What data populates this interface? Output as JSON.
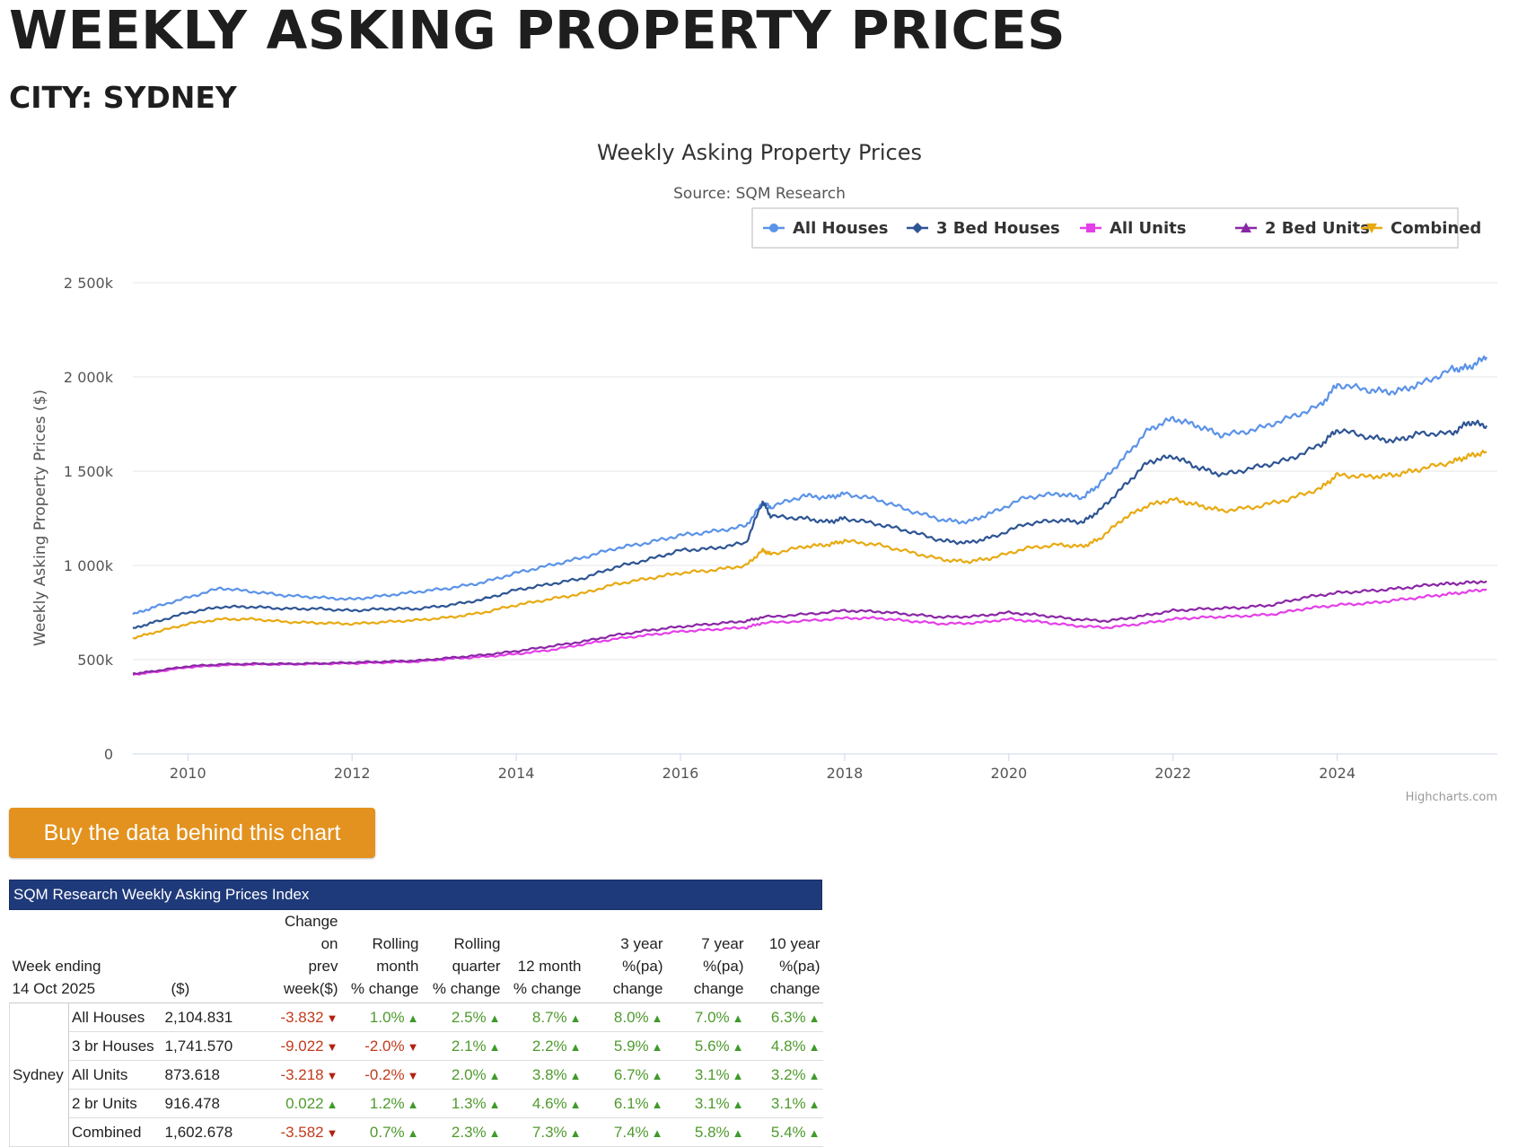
{
  "page": {
    "title": "WEEKLY ASKING PROPERTY PRICES",
    "city_label": "CITY: SYDNEY"
  },
  "chart_data": {
    "type": "line",
    "title": "Weekly Asking Property Prices",
    "subtitle": "Source: SQM Research",
    "ylabel": "Weekly Asking Property Prices ($)",
    "xlabel": "",
    "ylim": [
      0,
      2500000
    ],
    "yticks": [
      0,
      500000,
      1000000,
      1500000,
      2000000,
      2500000
    ],
    "ytick_labels": [
      "0",
      "500k",
      "1 000k",
      "1 500k",
      "2 000k",
      "2 500k"
    ],
    "xlim": [
      2009.33,
      2025.95
    ],
    "xticks": [
      2010,
      2012,
      2014,
      2016,
      2018,
      2020,
      2022,
      2024
    ],
    "xtick_labels": [
      "2010",
      "2012",
      "2014",
      "2016",
      "2018",
      "2020",
      "2022",
      "2024"
    ],
    "grid": "horizontal",
    "legend_position": "top-right",
    "credit": "Highcharts.com",
    "series": [
      {
        "name": "All Houses",
        "color": "#5b93e8",
        "marker": "circle",
        "x": [
          2009.33,
          2009.6,
          2010.0,
          2010.4,
          2010.8,
          2011.2,
          2011.6,
          2012.0,
          2012.4,
          2012.8,
          2013.2,
          2013.6,
          2014.0,
          2014.4,
          2014.8,
          2015.2,
          2015.6,
          2016.0,
          2016.4,
          2016.8,
          2017.0,
          2017.1,
          2017.5,
          2017.8,
          2018.0,
          2018.4,
          2018.8,
          2019.2,
          2019.5,
          2019.8,
          2020.2,
          2020.6,
          2020.9,
          2021.1,
          2021.4,
          2021.7,
          2022.0,
          2022.3,
          2022.6,
          2023.0,
          2023.4,
          2023.8,
          2024.0,
          2024.4,
          2024.7,
          2025.0,
          2025.4,
          2025.6,
          2025.82
        ],
        "y": [
          740000,
          780000,
          830000,
          880000,
          860000,
          840000,
          830000,
          820000,
          840000,
          860000,
          880000,
          910000,
          960000,
          1000000,
          1040000,
          1090000,
          1120000,
          1160000,
          1180000,
          1210000,
          1330000,
          1310000,
          1370000,
          1360000,
          1380000,
          1350000,
          1290000,
          1240000,
          1230000,
          1280000,
          1360000,
          1380000,
          1360000,
          1430000,
          1570000,
          1720000,
          1780000,
          1740000,
          1690000,
          1720000,
          1780000,
          1850000,
          1960000,
          1930000,
          1920000,
          1960000,
          2040000,
          2050000,
          2104831
        ]
      },
      {
        "name": "3 Bed Houses",
        "color": "#2e5594",
        "marker": "diamond",
        "x": [
          2009.33,
          2009.6,
          2010.0,
          2010.4,
          2010.8,
          2011.2,
          2011.6,
          2012.0,
          2012.4,
          2012.8,
          2013.2,
          2013.6,
          2014.0,
          2014.4,
          2014.8,
          2015.2,
          2015.6,
          2016.0,
          2016.4,
          2016.8,
          2017.0,
          2017.1,
          2017.5,
          2017.8,
          2018.0,
          2018.4,
          2018.8,
          2019.2,
          2019.5,
          2019.8,
          2020.2,
          2020.6,
          2020.9,
          2021.1,
          2021.4,
          2021.7,
          2022.0,
          2022.3,
          2022.6,
          2023.0,
          2023.4,
          2023.8,
          2024.0,
          2024.4,
          2024.7,
          2025.0,
          2025.4,
          2025.6,
          2025.82
        ],
        "y": [
          665000,
          700000,
          750000,
          780000,
          780000,
          770000,
          770000,
          760000,
          770000,
          770000,
          790000,
          820000,
          870000,
          900000,
          930000,
          990000,
          1030000,
          1080000,
          1090000,
          1120000,
          1340000,
          1260000,
          1250000,
          1230000,
          1250000,
          1220000,
          1180000,
          1130000,
          1120000,
          1150000,
          1220000,
          1240000,
          1230000,
          1290000,
          1420000,
          1550000,
          1580000,
          1520000,
          1480000,
          1520000,
          1560000,
          1640000,
          1720000,
          1680000,
          1660000,
          1700000,
          1700000,
          1760000,
          1741570
        ]
      },
      {
        "name": "All Units",
        "color": "#e43fe8",
        "marker": "square",
        "x": [
          2009.33,
          2009.6,
          2010.0,
          2010.4,
          2010.8,
          2011.2,
          2011.6,
          2012.0,
          2012.4,
          2012.8,
          2013.2,
          2013.6,
          2014.0,
          2014.4,
          2014.8,
          2015.2,
          2015.6,
          2016.0,
          2016.4,
          2016.8,
          2017.0,
          2017.5,
          2018.0,
          2018.4,
          2018.8,
          2019.2,
          2019.6,
          2020.0,
          2020.4,
          2020.8,
          2021.2,
          2021.6,
          2022.0,
          2022.4,
          2022.8,
          2023.2,
          2023.6,
          2024.0,
          2024.4,
          2024.8,
          2025.2,
          2025.5,
          2025.82
        ],
        "y": [
          420000,
          435000,
          460000,
          470000,
          475000,
          475000,
          478000,
          480000,
          485000,
          490000,
          505000,
          515000,
          530000,
          550000,
          580000,
          610000,
          630000,
          650000,
          660000,
          670000,
          695000,
          705000,
          720000,
          720000,
          705000,
          690000,
          695000,
          715000,
          700000,
          680000,
          670000,
          690000,
          715000,
          725000,
          730000,
          740000,
          770000,
          790000,
          800000,
          820000,
          840000,
          855000,
          873618
        ]
      },
      {
        "name": "2 Bed Units",
        "color": "#8a27a5",
        "marker": "triangle",
        "x": [
          2009.33,
          2009.6,
          2010.0,
          2010.4,
          2010.8,
          2011.2,
          2011.6,
          2012.0,
          2012.4,
          2012.8,
          2013.2,
          2013.6,
          2014.0,
          2014.4,
          2014.8,
          2015.2,
          2015.6,
          2016.0,
          2016.4,
          2016.8,
          2017.0,
          2017.5,
          2018.0,
          2018.4,
          2018.8,
          2019.2,
          2019.6,
          2020.0,
          2020.4,
          2020.8,
          2021.2,
          2021.6,
          2022.0,
          2022.4,
          2022.8,
          2023.2,
          2023.6,
          2024.0,
          2024.4,
          2024.8,
          2025.2,
          2025.5,
          2025.82
        ],
        "y": [
          425000,
          440000,
          465000,
          475000,
          478000,
          478000,
          480000,
          485000,
          490000,
          495000,
          510000,
          525000,
          545000,
          570000,
          595000,
          630000,
          655000,
          675000,
          690000,
          705000,
          725000,
          740000,
          760000,
          755000,
          740000,
          725000,
          730000,
          750000,
          735000,
          715000,
          705000,
          730000,
          760000,
          770000,
          775000,
          790000,
          830000,
          855000,
          865000,
          880000,
          900000,
          905000,
          916478
        ]
      },
      {
        "name": "Combined",
        "color": "#e8aa12",
        "marker": "triangle-down",
        "x": [
          2009.33,
          2009.6,
          2010.0,
          2010.4,
          2010.8,
          2011.2,
          2011.6,
          2012.0,
          2012.4,
          2012.8,
          2013.2,
          2013.6,
          2014.0,
          2014.4,
          2014.8,
          2015.2,
          2015.6,
          2016.0,
          2016.4,
          2016.8,
          2017.0,
          2017.1,
          2017.5,
          2017.8,
          2018.0,
          2018.4,
          2018.8,
          2019.2,
          2019.5,
          2019.8,
          2020.2,
          2020.6,
          2020.9,
          2021.1,
          2021.4,
          2021.7,
          2022.0,
          2022.3,
          2022.6,
          2023.0,
          2023.4,
          2023.8,
          2024.0,
          2024.4,
          2024.7,
          2025.0,
          2025.4,
          2025.6,
          2025.82
        ],
        "y": [
          615000,
          645000,
          690000,
          715000,
          715000,
          700000,
          695000,
          690000,
          700000,
          710000,
          725000,
          750000,
          790000,
          820000,
          850000,
          900000,
          930000,
          960000,
          975000,
          1000000,
          1080000,
          1060000,
          1100000,
          1110000,
          1130000,
          1110000,
          1070000,
          1030000,
          1020000,
          1040000,
          1090000,
          1110000,
          1100000,
          1140000,
          1250000,
          1320000,
          1350000,
          1320000,
          1290000,
          1310000,
          1350000,
          1410000,
          1480000,
          1470000,
          1480000,
          1510000,
          1550000,
          1580000,
          1602678
        ]
      }
    ]
  },
  "buy_button": {
    "label": "Buy the data behind this chart"
  },
  "index_table": {
    "title": "SQM Research Weekly Asking Prices Index",
    "headers": {
      "week_ending": "Week ending",
      "week_date": "14 Oct 2025",
      "price": "($)",
      "change_prev": [
        "Change",
        "on",
        "prev",
        "week($)"
      ],
      "rolling_month": [
        "Rolling",
        "month",
        "% change"
      ],
      "rolling_quarter": [
        "Rolling",
        "quarter",
        "% change"
      ],
      "twelve_month": [
        "12 month",
        "% change"
      ],
      "three_year": [
        "3 year",
        "%(pa)",
        "change"
      ],
      "seven_year": [
        "7 year",
        "%(pa)",
        "change"
      ],
      "ten_year": [
        "10 year",
        "%(pa)",
        "change"
      ]
    },
    "city": "Sydney",
    "rows": [
      {
        "type": "All Houses",
        "price": "2,104.831",
        "change": "-3.832",
        "month": "1.0%",
        "quarter": "2.5%",
        "year12": "8.7%",
        "y3": "8.0%",
        "y7": "7.0%",
        "y10": "6.3%"
      },
      {
        "type": "3 br Houses",
        "price": "1,741.570",
        "change": "-9.022",
        "month": "-2.0%",
        "quarter": "2.1%",
        "year12": "2.2%",
        "y3": "5.9%",
        "y7": "5.6%",
        "y10": "4.8%"
      },
      {
        "type": "All Units",
        "price": "873.618",
        "change": "-3.218",
        "month": "-0.2%",
        "quarter": "2.0%",
        "year12": "3.8%",
        "y3": "6.7%",
        "y7": "3.1%",
        "y10": "3.2%"
      },
      {
        "type": "2 br Units",
        "price": "916.478",
        "change": "0.022",
        "month": "1.2%",
        "quarter": "1.3%",
        "year12": "4.6%",
        "y3": "6.1%",
        "y7": "3.1%",
        "y10": "3.1%"
      },
      {
        "type": "Combined",
        "price": "1,602.678",
        "change": "-3.582",
        "month": "0.7%",
        "quarter": "2.3%",
        "year12": "7.3%",
        "y3": "7.4%",
        "y7": "5.8%",
        "y10": "5.4%"
      }
    ]
  }
}
